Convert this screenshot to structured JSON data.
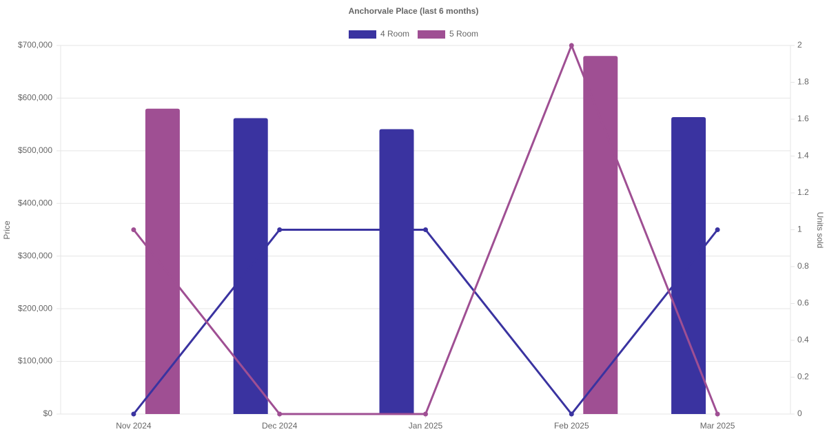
{
  "chart_data": {
    "type": "bar-line",
    "title": "Anchorvale Place (last 6 months)",
    "categories": [
      "Nov 2024",
      "Dec 2024",
      "Jan 2025",
      "Feb 2025",
      "Mar 2025"
    ],
    "series": [
      {
        "name": "4 Room",
        "color": "#3a33a0",
        "values": [
          null,
          562000,
          541000,
          null,
          564000
        ],
        "units": [
          0,
          1,
          1,
          0,
          1
        ]
      },
      {
        "name": "5 Room",
        "color": "#9f4f93",
        "values": [
          580000,
          null,
          null,
          680000,
          null
        ],
        "units": [
          1,
          0,
          0,
          2,
          0
        ]
      }
    ],
    "ylabel": "Price",
    "y2label": "Units sold",
    "ylim": [
      0,
      700000
    ],
    "yticks": [
      {
        "value": 0,
        "label": "$0"
      },
      {
        "value": 100000,
        "label": "$100,000"
      },
      {
        "value": 200000,
        "label": "$200,000"
      },
      {
        "value": 300000,
        "label": "$300,000"
      },
      {
        "value": 400000,
        "label": "$400,000"
      },
      {
        "value": 500000,
        "label": "$500,000"
      },
      {
        "value": 600000,
        "label": "$600,000"
      },
      {
        "value": 700000,
        "label": "$700,000"
      }
    ],
    "y2lim": [
      0,
      2
    ],
    "y2ticks": [
      0,
      0.2,
      0.4,
      0.6,
      0.8,
      1,
      1.2,
      1.4,
      1.6,
      1.8,
      2
    ],
    "grid": true
  }
}
